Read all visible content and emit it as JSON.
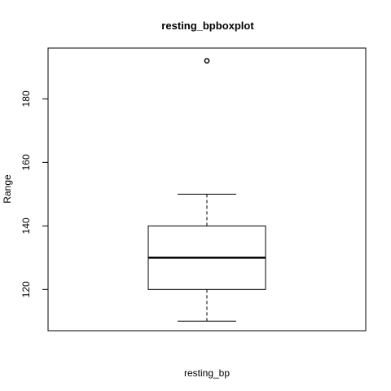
{
  "chart_data": {
    "type": "boxplot",
    "title": "resting_bpboxplot",
    "xlabel": "resting_bp",
    "ylabel": "Range",
    "ylim": [
      107,
      196
    ],
    "yticks": [
      120,
      140,
      160,
      180
    ],
    "series": [
      {
        "whisker_low": 110,
        "q1": 120,
        "median": 130,
        "q3": 140,
        "whisker_high": 150,
        "outliers": [
          192
        ]
      }
    ]
  }
}
